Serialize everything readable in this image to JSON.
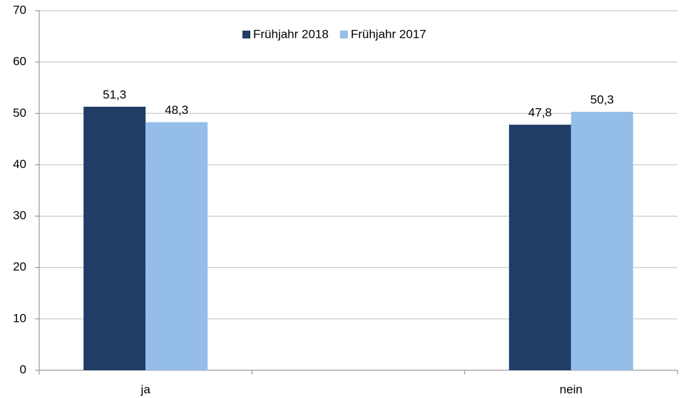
{
  "chart_data": {
    "type": "bar",
    "categories": [
      "ja",
      null,
      "nein"
    ],
    "series": [
      {
        "name": "Frühjahr 2018",
        "color": "#1f3d65",
        "values": [
          51.3,
          null,
          47.8
        ],
        "value_labels": [
          "51,3",
          null,
          "47,8"
        ]
      },
      {
        "name": "Frühjahr 2017",
        "color": "#95bde9",
        "values": [
          48.3,
          null,
          50.3
        ],
        "value_labels": [
          "48,3",
          null,
          "50,3"
        ]
      }
    ],
    "ylim": [
      0,
      70
    ],
    "yticks": [
      0,
      10,
      20,
      30,
      40,
      50,
      60,
      70
    ],
    "grid": true,
    "legend": "top"
  }
}
